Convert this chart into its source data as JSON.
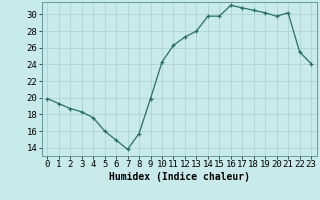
{
  "x": [
    0,
    1,
    2,
    3,
    4,
    5,
    6,
    7,
    8,
    9,
    10,
    11,
    12,
    13,
    14,
    15,
    16,
    17,
    18,
    19,
    20,
    21,
    22,
    23
  ],
  "y": [
    19.9,
    19.3,
    18.7,
    18.3,
    17.6,
    16.0,
    14.9,
    13.8,
    15.7,
    19.9,
    24.3,
    26.3,
    27.3,
    28.0,
    29.8,
    29.8,
    31.1,
    30.8,
    30.5,
    30.2,
    29.8,
    30.2,
    25.5,
    24.1
  ],
  "line_color": "#2a7060",
  "marker": "+",
  "bg_color": "#c8eaea",
  "grid_color": "#b0d4d4",
  "xlabel": "Humidex (Indice chaleur)",
  "ytick_vals": [
    14,
    16,
    18,
    20,
    22,
    24,
    26,
    28,
    30
  ],
  "ylim": [
    13.0,
    31.5
  ],
  "xlim": [
    -0.5,
    23.5
  ],
  "axis_fontsize": 7,
  "tick_fontsize": 6.5
}
